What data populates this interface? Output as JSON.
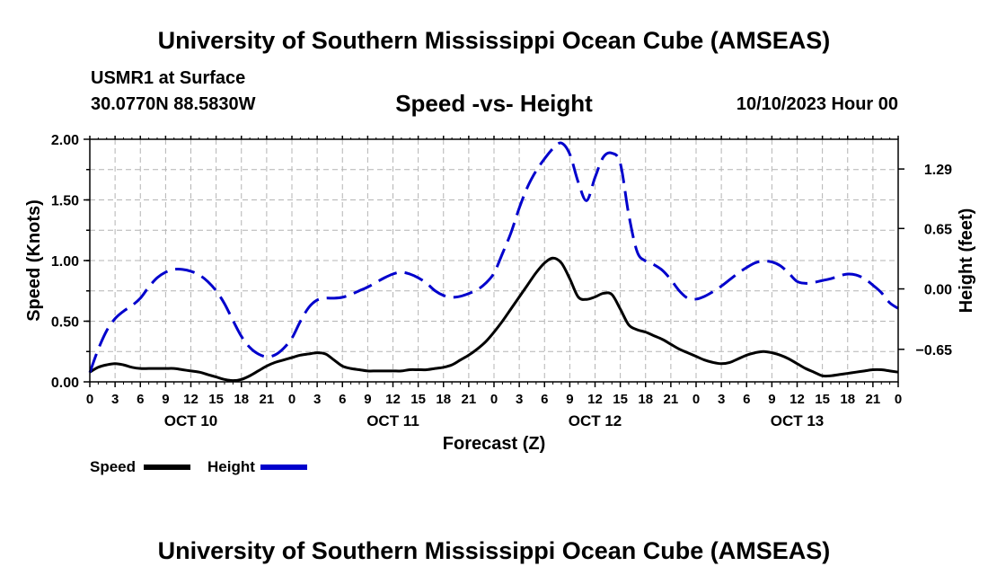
{
  "header": {
    "title_top": "University of Southern Mississippi Ocean Cube (AMSEAS)",
    "station": "USMR1 at Surface",
    "coords": "30.0770N  88.5830W",
    "chart_title": "Speed -vs- Height",
    "date": "10/10/2023 Hour 00",
    "title_bottom": "University of Southern Mississippi Ocean Cube (AMSEAS)"
  },
  "legend": {
    "speed_label": "Speed",
    "height_label": "Height"
  },
  "colors": {
    "speed": "#000000",
    "height": "#0000cc",
    "grid": "#b4b4b4"
  },
  "chart_data": {
    "type": "line",
    "title": "Speed -vs- Height",
    "xlabel": "Forecast (Z)",
    "ylabel": "Speed (Knots)",
    "y2label": "Height (feet)",
    "xlim": [
      0,
      96
    ],
    "ylim": [
      0,
      2.0
    ],
    "y2lim": [
      -1.0,
      1.61
    ],
    "x_ticks": [
      0,
      3,
      6,
      9,
      12,
      15,
      18,
      21,
      24,
      27,
      30,
      33,
      36,
      39,
      42,
      45,
      48,
      51,
      54,
      57,
      60,
      63,
      66,
      69,
      72,
      75,
      78,
      81,
      84,
      87,
      90,
      93,
      96
    ],
    "x_tick_labels": [
      "0",
      "3",
      "6",
      "9",
      "12",
      "15",
      "18",
      "21",
      "0",
      "3",
      "6",
      "9",
      "12",
      "15",
      "18",
      "21",
      "0",
      "3",
      "6",
      "9",
      "12",
      "15",
      "18",
      "21",
      "0",
      "3",
      "6",
      "9",
      "12",
      "15",
      "18",
      "21",
      "0"
    ],
    "day_labels": [
      {
        "x": 12,
        "label": "OCT 10"
      },
      {
        "x": 36,
        "label": "OCT 11"
      },
      {
        "x": 60,
        "label": "OCT 12"
      },
      {
        "x": 84,
        "label": "OCT 13"
      }
    ],
    "y_ticks": [
      0.0,
      0.5,
      1.0,
      1.5,
      2.0
    ],
    "y_tick_labels": [
      "0.00",
      "0.50",
      "1.00",
      "1.50",
      "2.00"
    ],
    "y2_ticks": [
      -0.65,
      0.0,
      0.65,
      1.29
    ],
    "y2_tick_labels": [
      "−0.65",
      "0.00",
      "0.65",
      "1.29"
    ],
    "grid": true,
    "series": [
      {
        "name": "Speed",
        "axis": "left",
        "style": "solid",
        "x": [
          0,
          1,
          2,
          3,
          4,
          5,
          6,
          7,
          8,
          9,
          10,
          11,
          12,
          13,
          14,
          15,
          16,
          17,
          18,
          19,
          20,
          21,
          22,
          23,
          24,
          25,
          26,
          27,
          28,
          29,
          30,
          31,
          32,
          33,
          34,
          35,
          36,
          37,
          38,
          39,
          40,
          41,
          42,
          43,
          44,
          45,
          46,
          47,
          48,
          49,
          50,
          51,
          52,
          53,
          54,
          55,
          56,
          57,
          58,
          59,
          60,
          61,
          62,
          63,
          64,
          65,
          66,
          67,
          68,
          69,
          70,
          71,
          72,
          73,
          74,
          75,
          76,
          77,
          78,
          79,
          80,
          81,
          82,
          83,
          84,
          85,
          86,
          87,
          88,
          89,
          90,
          91,
          92,
          93,
          94,
          95,
          96
        ],
        "values": [
          0.08,
          0.12,
          0.14,
          0.15,
          0.14,
          0.12,
          0.11,
          0.11,
          0.11,
          0.11,
          0.11,
          0.1,
          0.09,
          0.08,
          0.06,
          0.04,
          0.02,
          0.01,
          0.02,
          0.05,
          0.09,
          0.13,
          0.16,
          0.18,
          0.2,
          0.22,
          0.23,
          0.24,
          0.23,
          0.18,
          0.13,
          0.11,
          0.1,
          0.09,
          0.09,
          0.09,
          0.09,
          0.09,
          0.1,
          0.1,
          0.1,
          0.11,
          0.12,
          0.14,
          0.18,
          0.22,
          0.27,
          0.33,
          0.41,
          0.5,
          0.6,
          0.7,
          0.8,
          0.9,
          0.98,
          1.02,
          0.98,
          0.85,
          0.7,
          0.68,
          0.7,
          0.73,
          0.72,
          0.6,
          0.47,
          0.43,
          0.41,
          0.38,
          0.35,
          0.31,
          0.27,
          0.24,
          0.21,
          0.18,
          0.16,
          0.15,
          0.16,
          0.19,
          0.22,
          0.24,
          0.25,
          0.24,
          0.22,
          0.19,
          0.15,
          0.11,
          0.08,
          0.05,
          0.05,
          0.06,
          0.07,
          0.08,
          0.09,
          0.1,
          0.1,
          0.09,
          0.08
        ]
      },
      {
        "name": "Height",
        "axis": "right",
        "style": "dashed",
        "x": [
          0,
          1,
          2,
          3,
          4,
          5,
          6,
          7,
          8,
          9,
          10,
          11,
          12,
          13,
          14,
          15,
          16,
          17,
          18,
          19,
          20,
          21,
          22,
          23,
          24,
          25,
          26,
          27,
          28,
          29,
          30,
          31,
          32,
          33,
          34,
          35,
          36,
          37,
          38,
          39,
          40,
          41,
          42,
          43,
          44,
          45,
          46,
          47,
          48,
          49,
          50,
          51,
          52,
          53,
          54,
          55,
          56,
          57,
          58,
          59,
          60,
          61,
          62,
          63,
          64,
          65,
          66,
          67,
          68,
          69,
          70,
          71,
          72,
          73,
          74,
          75,
          76,
          77,
          78,
          79,
          80,
          81,
          82,
          83,
          84,
          85,
          86,
          87,
          88,
          89,
          90,
          91,
          92,
          93,
          94,
          95,
          96
        ],
        "values": [
          -0.9,
          -0.65,
          -0.45,
          -0.32,
          -0.24,
          -0.18,
          -0.1,
          0.02,
          0.12,
          0.18,
          0.21,
          0.21,
          0.19,
          0.15,
          0.08,
          -0.02,
          -0.16,
          -0.34,
          -0.51,
          -0.63,
          -0.7,
          -0.73,
          -0.71,
          -0.64,
          -0.53,
          -0.35,
          -0.2,
          -0.12,
          -0.1,
          -0.1,
          -0.09,
          -0.06,
          -0.02,
          0.02,
          0.07,
          0.12,
          0.16,
          0.18,
          0.16,
          0.12,
          0.06,
          -0.02,
          -0.07,
          -0.09,
          -0.08,
          -0.05,
          -0.01,
          0.06,
          0.17,
          0.38,
          0.6,
          0.87,
          1.1,
          1.27,
          1.4,
          1.51,
          1.57,
          1.45,
          1.15,
          0.95,
          1.2,
          1.42,
          1.46,
          1.35,
          0.8,
          0.4,
          0.3,
          0.26,
          0.2,
          0.1,
          -0.02,
          -0.1,
          -0.11,
          -0.08,
          -0.03,
          0.03,
          0.1,
          0.17,
          0.23,
          0.28,
          0.3,
          0.29,
          0.25,
          0.17,
          0.08,
          0.06,
          0.07,
          0.09,
          0.11,
          0.14,
          0.16,
          0.15,
          0.11,
          0.04,
          -0.04,
          -0.15,
          -0.21
        ]
      }
    ]
  }
}
